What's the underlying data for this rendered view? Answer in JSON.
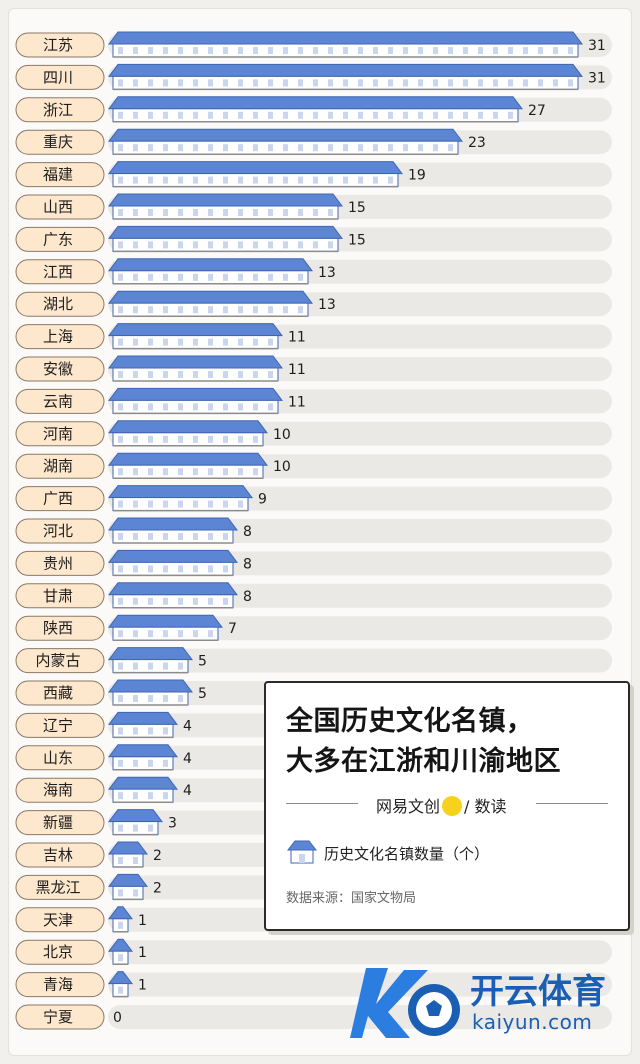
{
  "chart_data": {
    "type": "bar",
    "orientation": "horizontal",
    "title": "全国历史文化名镇，大多在江浙和川渝地区",
    "categories": [
      "江苏",
      "四川",
      "浙江",
      "重庆",
      "福建",
      "山西",
      "广东",
      "江西",
      "湖北",
      "上海",
      "安徽",
      "云南",
      "河南",
      "湖南",
      "广西",
      "河北",
      "贵州",
      "甘肃",
      "陕西",
      "内蒙古",
      "西藏",
      "辽宁",
      "山东",
      "海南",
      "新疆",
      "吉林",
      "黑龙江",
      "天津",
      "北京",
      "青海",
      "宁夏"
    ],
    "series": [
      {
        "name": "历史文化名镇数量（个）",
        "values": [
          31,
          31,
          27,
          23,
          19,
          15,
          15,
          13,
          13,
          11,
          11,
          11,
          10,
          10,
          9,
          8,
          8,
          8,
          7,
          5,
          5,
          4,
          4,
          4,
          3,
          2,
          2,
          1,
          1,
          1,
          0
        ]
      }
    ],
    "xlim": [
      0,
      31
    ],
    "legend_position": "bottom-right",
    "colors": {
      "roof": "#5c86d4",
      "roof_dark": "#3f66b3",
      "wall": "#ffffff",
      "track": "#ebe9e6",
      "label_bg": "#fde7cd",
      "label_border": "#8a7a66"
    }
  },
  "card": {
    "title_line1": "全国历史文化名镇，",
    "title_line2": "大多在江浙和川渝地区",
    "brand_left": "网易",
    "brand_mid": "文创",
    "brand_right": "/ 数读",
    "legend_label": "历史文化名镇数量（个）",
    "source": "数据来源：国家文物局"
  },
  "watermark": {
    "text": "开云体育",
    "url": "kaiyun.com"
  }
}
